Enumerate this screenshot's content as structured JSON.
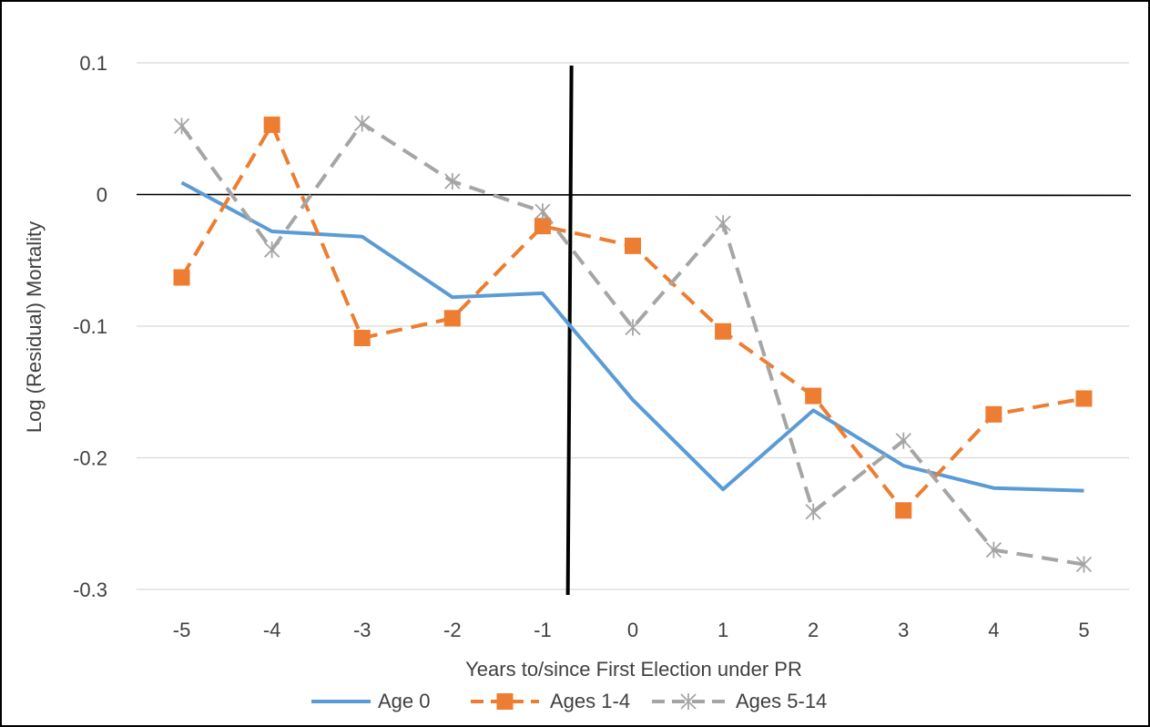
{
  "chart_data": {
    "type": "line",
    "title": "",
    "xlabel": "Years to/since First Election under PR",
    "ylabel": "Log (Residual) Mortality",
    "ylim": [
      -0.3,
      0.1
    ],
    "y_ticks": [
      0.1,
      0,
      -0.1,
      -0.2,
      -0.3
    ],
    "y_tick_labels": [
      "0.1",
      "0",
      "-0.1",
      "-0.2",
      "-0.3"
    ],
    "categories": [
      "-5",
      "-4",
      "-3",
      "-2",
      "-1",
      "0",
      "1",
      "2",
      "3",
      "4",
      "5"
    ],
    "grid": true,
    "legend_position": "bottom",
    "reference_lines": {
      "horizontal_at_y": 0,
      "vertical_between_x": [
        "-1",
        "0"
      ]
    },
    "series": [
      {
        "name": "Age 0",
        "color": "#5B9BD5",
        "style": "solid",
        "marker": "none",
        "values": [
          0.009,
          -0.028,
          -0.032,
          -0.078,
          -0.075,
          -0.156,
          -0.224,
          -0.164,
          -0.206,
          -0.223,
          -0.225
        ]
      },
      {
        "name": "Ages 1-4",
        "color": "#ED7D31",
        "style": "dashed",
        "marker": "square",
        "values": [
          -0.063,
          0.053,
          -0.109,
          -0.094,
          -0.024,
          -0.039,
          -0.104,
          -0.153,
          -0.24,
          -0.167,
          -0.155
        ]
      },
      {
        "name": "Ages 5-14",
        "color": "#A5A5A5",
        "style": "dashed",
        "marker": "asterisk",
        "values": [
          0.052,
          -0.042,
          0.054,
          0.01,
          -0.013,
          -0.101,
          -0.022,
          -0.241,
          -0.187,
          -0.27,
          -0.281
        ]
      }
    ]
  }
}
